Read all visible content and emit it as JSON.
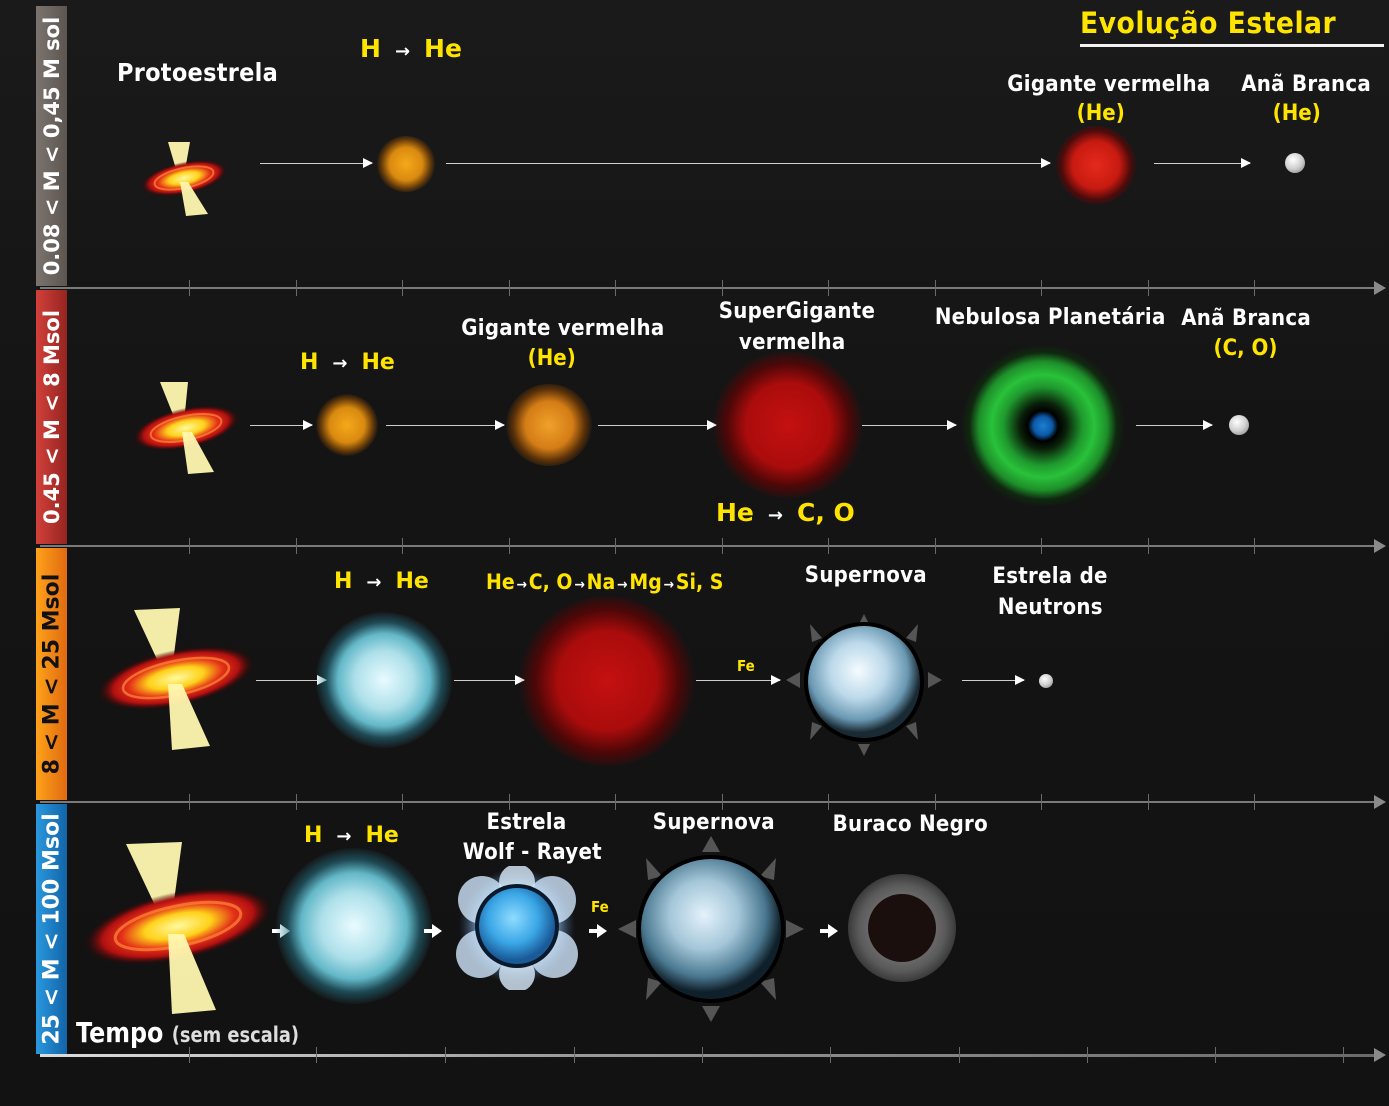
{
  "title": "Evolução Estelar",
  "axis": {
    "label": "Tempo",
    "sublabel": "(sem escala)"
  },
  "rows": [
    {
      "band_label": "0.08 < M < 0,45 M sol",
      "band_color": "#6b625d",
      "stages": [
        {
          "name": "Protoestrela"
        },
        {
          "name": "",
          "note": "H → He"
        },
        {
          "name": "Gigante vermelha",
          "note": "(He)"
        },
        {
          "name": "Anã Branca",
          "note": "(He)"
        }
      ],
      "reaction": {
        "from": "H",
        "arrow": "→",
        "to": "He"
      }
    },
    {
      "band_label": "0.45 < M < 8 Msol",
      "band_color": "#b8312e",
      "stages": [
        {
          "name": ""
        },
        {
          "name": ""
        },
        {
          "name": "Gigante vermelha",
          "note": "(He)"
        },
        {
          "name": "SuperGigante vermelha"
        },
        {
          "name": "Nebulosa Planetária"
        },
        {
          "name": "Anã Branca",
          "note": "(C, O)"
        }
      ],
      "reaction_1": {
        "from": "H",
        "arrow": "→",
        "to": "He"
      },
      "reaction_2": {
        "from": "He",
        "arrow": "→",
        "to": "C, O"
      },
      "supergiant_line1": "SuperGigante",
      "supergiant_line2": "vermelha"
    },
    {
      "band_label": "8 < M < 25 Msol",
      "band_color": "#f07a14",
      "stages": [
        {
          "name": ""
        },
        {
          "name": ""
        },
        {
          "name": ""
        },
        {
          "name": "Supernova"
        },
        {
          "name": "Estrela de Neutrons"
        }
      ],
      "reaction": {
        "from": "H",
        "arrow": "→",
        "to": "He"
      },
      "sequence": [
        "He",
        "C, O",
        "Na",
        "Mg",
        "Si, S"
      ],
      "fe_label": "Fe",
      "neutron_line1": "Estrela de",
      "neutron_line2": "Neutrons"
    },
    {
      "band_label": "25 < M < 100 Msol",
      "band_color": "#1c7fc4",
      "stages": [
        {
          "name": ""
        },
        {
          "name": ""
        },
        {
          "name": "Estrela Wolf - Rayet"
        },
        {
          "name": "Supernova"
        },
        {
          "name": "Buraco Negro"
        }
      ],
      "reaction": {
        "from": "H",
        "arrow": "→",
        "to": "He"
      },
      "fe_label": "Fe",
      "wr_line1": "Estrela",
      "wr_line2": "Wolf - Rayet"
    }
  ]
}
